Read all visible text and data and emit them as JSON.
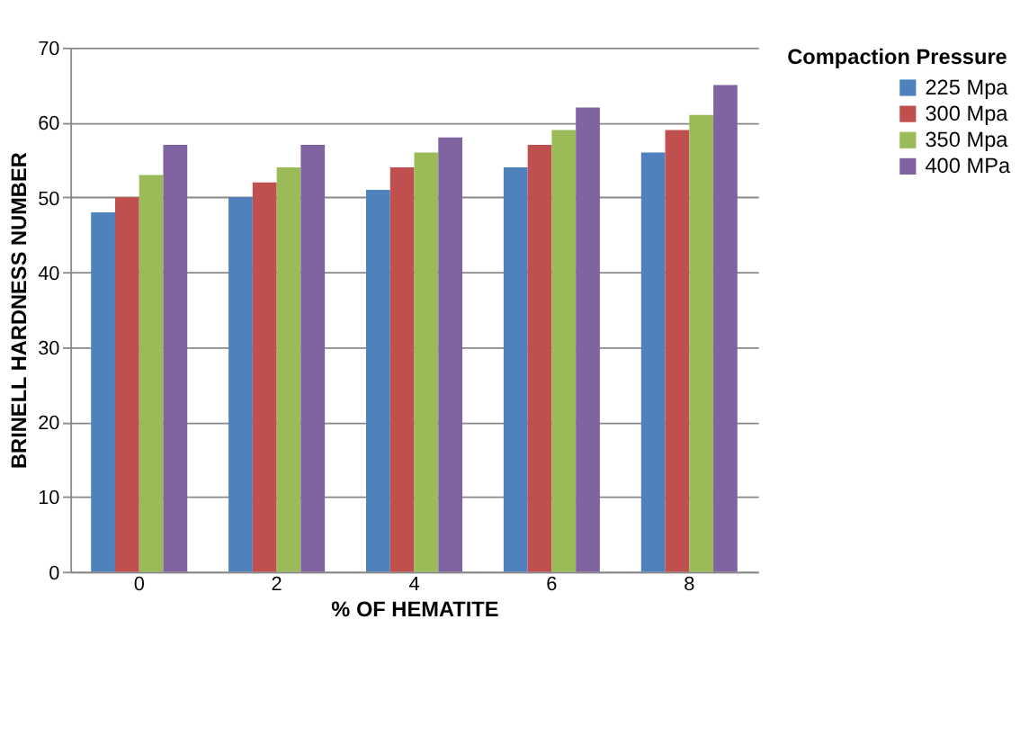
{
  "chart_data": {
    "type": "bar",
    "xlabel": "% OF HEMATITE",
    "ylabel": "BRINELL HARDNESS NUMBER",
    "legend_title": "Compaction Pressure",
    "categories": [
      "0",
      "2",
      "4",
      "6",
      "8"
    ],
    "series": [
      {
        "name": "225 Mpa",
        "color": "#4f81bd",
        "values": [
          48,
          50,
          51,
          54,
          56
        ]
      },
      {
        "name": "300 Mpa",
        "color": "#c0504d",
        "values": [
          50,
          52,
          54,
          57,
          59
        ]
      },
      {
        "name": "350 Mpa",
        "color": "#9bbb59",
        "values": [
          53,
          54,
          56,
          59,
          61
        ]
      },
      {
        "name": "400 MPa",
        "color": "#8064a2",
        "values": [
          57,
          57,
          58,
          62,
          65
        ]
      }
    ],
    "ylim": [
      0,
      70
    ],
    "yticks": [
      0,
      10,
      20,
      30,
      40,
      50,
      60,
      70
    ],
    "grid": "y",
    "legend": "right"
  }
}
